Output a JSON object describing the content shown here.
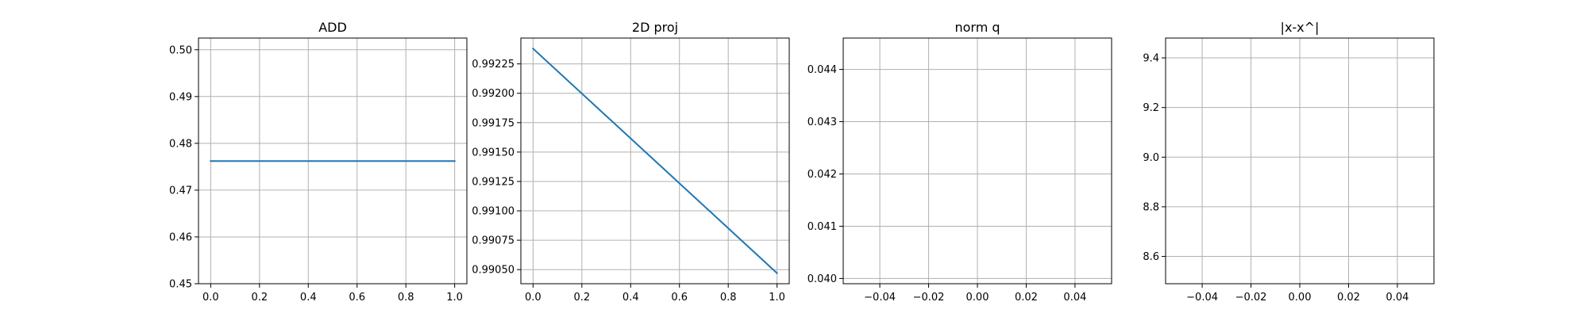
{
  "chart_data": [
    {
      "type": "line",
      "title": "ADD",
      "xlabel": "",
      "ylabel": "",
      "xlim": [
        -0.05,
        1.05
      ],
      "ylim": [
        0.45,
        0.5025
      ],
      "xticks": [
        0.0,
        0.2,
        0.4,
        0.6,
        0.8,
        1.0
      ],
      "xtick_labels": [
        "0.0",
        "0.2",
        "0.4",
        "0.6",
        "0.8",
        "1.0"
      ],
      "yticks": [
        0.45,
        0.46,
        0.47,
        0.48,
        0.49,
        0.5
      ],
      "ytick_labels": [
        "0.45",
        "0.46",
        "0.47",
        "0.48",
        "0.49",
        "0.50"
      ],
      "grid": true,
      "color": "#1f77b4",
      "series": [
        {
          "x": [
            0,
            1
          ],
          "values": [
            0.4762,
            0.4762
          ]
        }
      ]
    },
    {
      "type": "line",
      "title": "2D proj",
      "xlabel": "",
      "ylabel": "",
      "xlim": [
        -0.05,
        1.05
      ],
      "ylim": [
        0.99038,
        0.99247
      ],
      "xticks": [
        0.0,
        0.2,
        0.4,
        0.6,
        0.8,
        1.0
      ],
      "xtick_labels": [
        "0.0",
        "0.2",
        "0.4",
        "0.6",
        "0.8",
        "1.0"
      ],
      "yticks": [
        0.9905,
        0.99075,
        0.991,
        0.99125,
        0.9915,
        0.99175,
        0.992,
        0.99225
      ],
      "ytick_labels": [
        "0.99050",
        "0.99075",
        "0.99100",
        "0.99125",
        "0.99150",
        "0.99175",
        "0.99200",
        "0.99225"
      ],
      "grid": true,
      "color": "#1f77b4",
      "series": [
        {
          "x": [
            0,
            1
          ],
          "values": [
            0.99238,
            0.99047
          ]
        }
      ]
    },
    {
      "type": "line",
      "title": "norm q",
      "xlabel": "",
      "ylabel": "",
      "xlim": [
        -0.055,
        0.055
      ],
      "ylim": [
        0.0399,
        0.0446
      ],
      "xticks": [
        -0.04,
        -0.02,
        0.0,
        0.02,
        0.04
      ],
      "xtick_labels": [
        "−0.04",
        "−0.02",
        "0.00",
        "0.02",
        "0.04"
      ],
      "yticks": [
        0.04,
        0.041,
        0.042,
        0.043,
        0.044
      ],
      "ytick_labels": [
        "0.040",
        "0.041",
        "0.042",
        "0.043",
        "0.044"
      ],
      "grid": true,
      "color": "#1f77b4",
      "series": []
    },
    {
      "type": "line",
      "title": "|x-x^|",
      "xlabel": "",
      "ylabel": "",
      "xlim": [
        -0.055,
        0.055
      ],
      "ylim": [
        8.49,
        9.48
      ],
      "xticks": [
        -0.04,
        -0.02,
        0.0,
        0.02,
        0.04
      ],
      "xtick_labels": [
        "−0.04",
        "−0.02",
        "0.00",
        "0.02",
        "0.04"
      ],
      "yticks": [
        8.6,
        8.8,
        9.0,
        9.2,
        9.4
      ],
      "ytick_labels": [
        "8.6",
        "8.8",
        "9.0",
        "9.2",
        "9.4"
      ],
      "grid": true,
      "color": "#1f77b4",
      "series": []
    }
  ]
}
